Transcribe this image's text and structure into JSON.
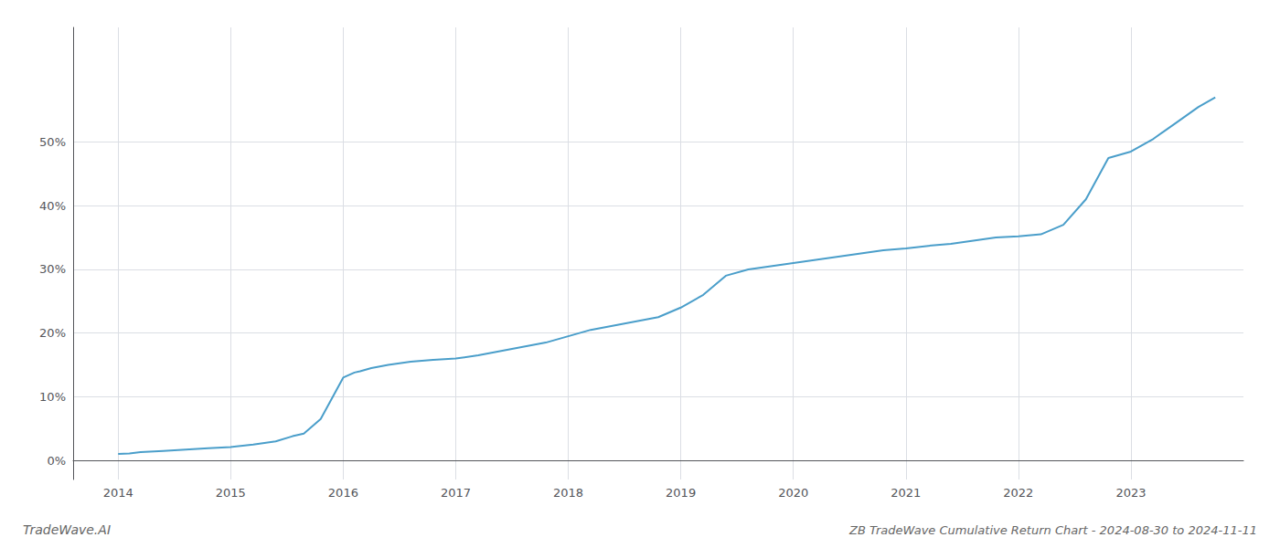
{
  "chart_data": {
    "type": "line",
    "title": "ZB TradeWave Cumulative Return Chart - 2024-08-30 to 2024-11-11",
    "annotations": [
      "TradeWave.AI"
    ],
    "color": "#4a9eca",
    "x": [
      2014.0,
      2014.1,
      2014.2,
      2014.4,
      2014.6,
      2014.8,
      2015.0,
      2015.2,
      2015.4,
      2015.55,
      2015.65,
      2015.8,
      2016.0,
      2016.1,
      2016.15,
      2016.25,
      2016.4,
      2016.6,
      2016.8,
      2017.0,
      2017.2,
      2017.5,
      2017.8,
      2018.0,
      2018.2,
      2018.5,
      2018.8,
      2019.0,
      2019.2,
      2019.4,
      2019.6,
      2019.8,
      2020.0,
      2020.2,
      2020.4,
      2020.6,
      2020.8,
      2021.0,
      2021.2,
      2021.4,
      2021.6,
      2021.8,
      2022.0,
      2022.2,
      2022.4,
      2022.6,
      2022.8,
      2023.0,
      2023.2,
      2023.4,
      2023.6,
      2023.75
    ],
    "values": [
      1.0,
      1.1,
      1.3,
      1.5,
      1.7,
      1.9,
      2.1,
      2.5,
      3.0,
      3.8,
      4.2,
      6.5,
      13.0,
      13.8,
      14.0,
      14.5,
      15.0,
      15.5,
      15.8,
      16.0,
      16.5,
      17.5,
      18.5,
      19.5,
      20.5,
      21.5,
      22.5,
      24.0,
      26.0,
      29.0,
      30.0,
      30.5,
      31.0,
      31.5,
      32.0,
      32.5,
      33.0,
      33.3,
      33.7,
      34.0,
      34.5,
      35.0,
      35.2,
      35.5,
      37.0,
      41.0,
      47.5,
      48.5,
      50.5,
      53.0,
      55.5,
      57.0
    ],
    "xlim": [
      2013.6,
      2024.0
    ],
    "ylim": [
      -3,
      68
    ],
    "xticks": [
      2014,
      2015,
      2016,
      2017,
      2018,
      2019,
      2020,
      2021,
      2022,
      2023
    ],
    "yticks": [
      {
        "value": 0,
        "label": "0%"
      },
      {
        "value": 10,
        "label": "10%"
      },
      {
        "value": 20,
        "label": "20%"
      },
      {
        "value": 30,
        "label": "30%"
      },
      {
        "value": 40,
        "label": "40%"
      },
      {
        "value": 50,
        "label": "50%"
      }
    ],
    "grid": true
  }
}
